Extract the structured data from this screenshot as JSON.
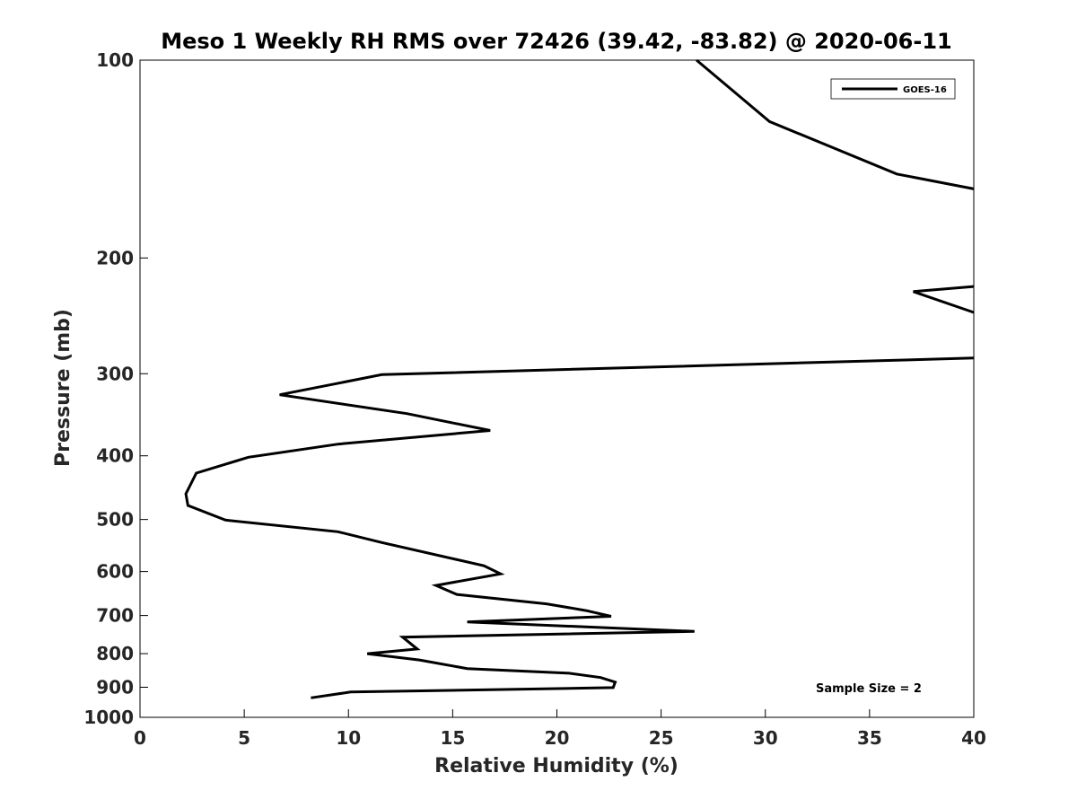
{
  "chart_data": {
    "type": "line",
    "title": "Meso 1 Weekly RH RMS over 72426 (39.42, -83.82) @ 2020-06-11",
    "xlabel": "Relative Humidity (%)",
    "ylabel": "Pressure (mb)",
    "xlim": [
      0,
      40
    ],
    "ylim": [
      100,
      1000
    ],
    "y_scale": "log",
    "y_reversed": true,
    "xticks": [
      "0",
      "5",
      "10",
      "15",
      "20",
      "25",
      "30",
      "35",
      "40"
    ],
    "yticks": [
      "100",
      "200",
      "300",
      "400",
      "500",
      "600",
      "700",
      "800",
      "900",
      "1000"
    ],
    "grid": false,
    "legend_position": "top-right",
    "annotation": "Sample Size = 2",
    "series": [
      {
        "name": "GOES-16",
        "color": "#000000",
        "points": [
          [
            26.7,
            100
          ],
          [
            30.2,
            124
          ],
          [
            36.3,
            149
          ],
          [
            40,
            157
          ],
          null,
          [
            40,
            221
          ],
          [
            37.1,
            225
          ],
          [
            40,
            242
          ],
          null,
          [
            40,
            284
          ],
          [
            11.6,
            301
          ],
          [
            6.7,
            323
          ],
          [
            12.8,
            345
          ],
          [
            16.8,
            366
          ],
          [
            9.5,
            384
          ],
          [
            5.2,
            402
          ],
          [
            2.7,
            425
          ],
          [
            2.2,
            457
          ],
          [
            2.3,
            476
          ],
          [
            4.1,
            501
          ],
          [
            9.5,
            522
          ],
          [
            11.6,
            542
          ],
          [
            16.5,
            588
          ],
          [
            17.3,
            605
          ],
          [
            14.2,
            630
          ],
          [
            15.2,
            650
          ],
          [
            19.5,
            672
          ],
          [
            21.4,
            688
          ],
          [
            22.6,
            702
          ],
          [
            15.7,
            716
          ],
          [
            26.6,
            740
          ],
          [
            12.6,
            755
          ],
          [
            13.3,
            787
          ],
          [
            10.9,
            800
          ],
          [
            13.4,
            818
          ],
          [
            15.7,
            843
          ],
          [
            20.6,
            857
          ],
          [
            22.1,
            870
          ],
          [
            22.8,
            884
          ],
          [
            22.7,
            901
          ],
          [
            10.1,
            915
          ],
          [
            8.2,
            934
          ]
        ]
      }
    ]
  }
}
